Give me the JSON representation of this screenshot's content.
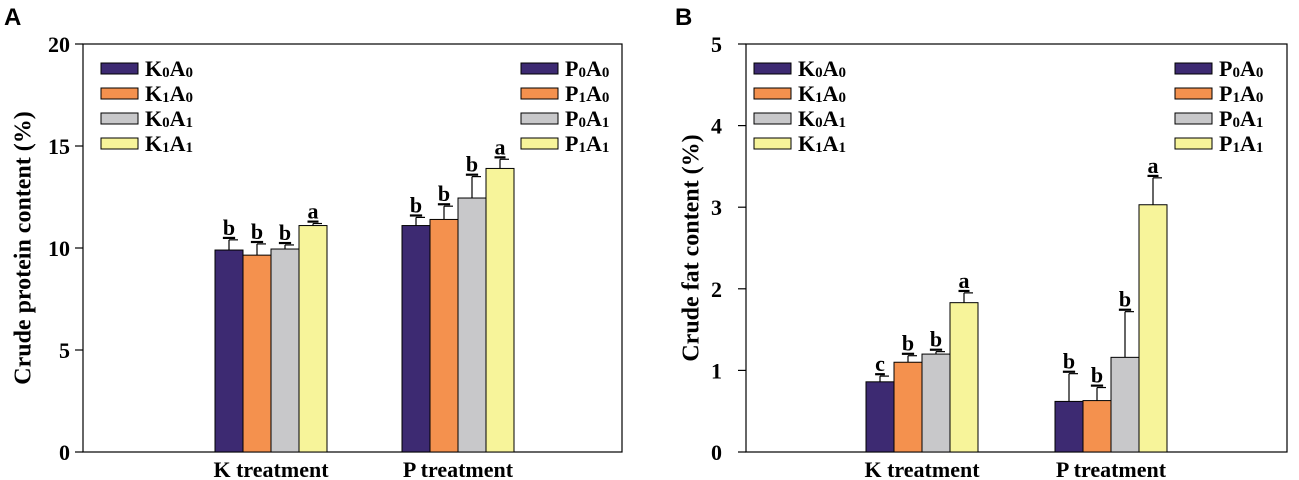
{
  "chart_data": [
    {
      "panel": "A",
      "type": "bar",
      "ylabel": "Crude protein content (%)",
      "xlabel": "",
      "ylim": [
        0,
        20
      ],
      "yticks": [
        0,
        5,
        10,
        15,
        20
      ],
      "categories": [
        "K treatment",
        "P treatment"
      ],
      "series": [
        {
          "name_k": [
            "K",
            "0",
            "A",
            "0"
          ],
          "name_p": [
            "P",
            "0",
            "A",
            "0"
          ],
          "color": "#3d2a72",
          "values": [
            9.9,
            11.1
          ],
          "errors": [
            0.5,
            0.4
          ],
          "sig": [
            "b",
            "b"
          ]
        },
        {
          "name_k": [
            "K",
            "1",
            "A",
            "0"
          ],
          "name_p": [
            "P",
            "1",
            "A",
            "0"
          ],
          "color": "#f4914e",
          "values": [
            9.65,
            11.4
          ],
          "errors": [
            0.55,
            0.65
          ],
          "sig": [
            "b",
            "b"
          ]
        },
        {
          "name_k": [
            "K",
            "0",
            "A",
            "1"
          ],
          "name_p": [
            "P",
            "0",
            "A",
            "1"
          ],
          "color": "#c8c8ca",
          "values": [
            9.95,
            12.45
          ],
          "errors": [
            0.2,
            1.05
          ],
          "sig": [
            "b",
            "b"
          ]
        },
        {
          "name_k": [
            "K",
            "1",
            "A",
            "1"
          ],
          "name_p": [
            "P",
            "1",
            "A",
            "1"
          ],
          "color": "#f7f49a",
          "values": [
            11.1,
            13.9
          ],
          "errors": [
            0.1,
            0.45
          ],
          "sig": [
            "a",
            "a"
          ]
        }
      ],
      "legend_left": "top-left (K series)",
      "legend_right": "top-right (P series)"
    },
    {
      "panel": "B",
      "type": "bar",
      "ylabel": "Crude fat content (%)",
      "xlabel": "",
      "ylim": [
        0,
        5
      ],
      "yticks": [
        0,
        1,
        2,
        3,
        4,
        5
      ],
      "categories": [
        "K treatment",
        "P treatment"
      ],
      "series": [
        {
          "name_k": [
            "K",
            "0",
            "A",
            "0"
          ],
          "name_p": [
            "P",
            "0",
            "A",
            "0"
          ],
          "color": "#3d2a72",
          "values": [
            0.86,
            0.62
          ],
          "errors": [
            0.07,
            0.34
          ],
          "sig": [
            "c",
            "b"
          ]
        },
        {
          "name_k": [
            "K",
            "1",
            "A",
            "0"
          ],
          "name_p": [
            "P",
            "1",
            "A",
            "0"
          ],
          "color": "#f4914e",
          "values": [
            1.1,
            0.63
          ],
          "errors": [
            0.08,
            0.16
          ],
          "sig": [
            "b",
            "b"
          ]
        },
        {
          "name_k": [
            "K",
            "0",
            "A",
            "1"
          ],
          "name_p": [
            "P",
            "0",
            "A",
            "1"
          ],
          "color": "#c8c8ca",
          "values": [
            1.2,
            1.16
          ],
          "errors": [
            0.03,
            0.56
          ],
          "sig": [
            "b",
            "b"
          ]
        },
        {
          "name_k": [
            "K",
            "1",
            "A",
            "1"
          ],
          "name_p": [
            "P",
            "1",
            "A",
            "1"
          ],
          "color": "#f7f49a",
          "values": [
            1.83,
            3.03
          ],
          "errors": [
            0.12,
            0.33
          ],
          "sig": [
            "a",
            "a"
          ]
        }
      ],
      "legend_left": "top-left (K series)",
      "legend_right": "top-right (P series)"
    }
  ]
}
